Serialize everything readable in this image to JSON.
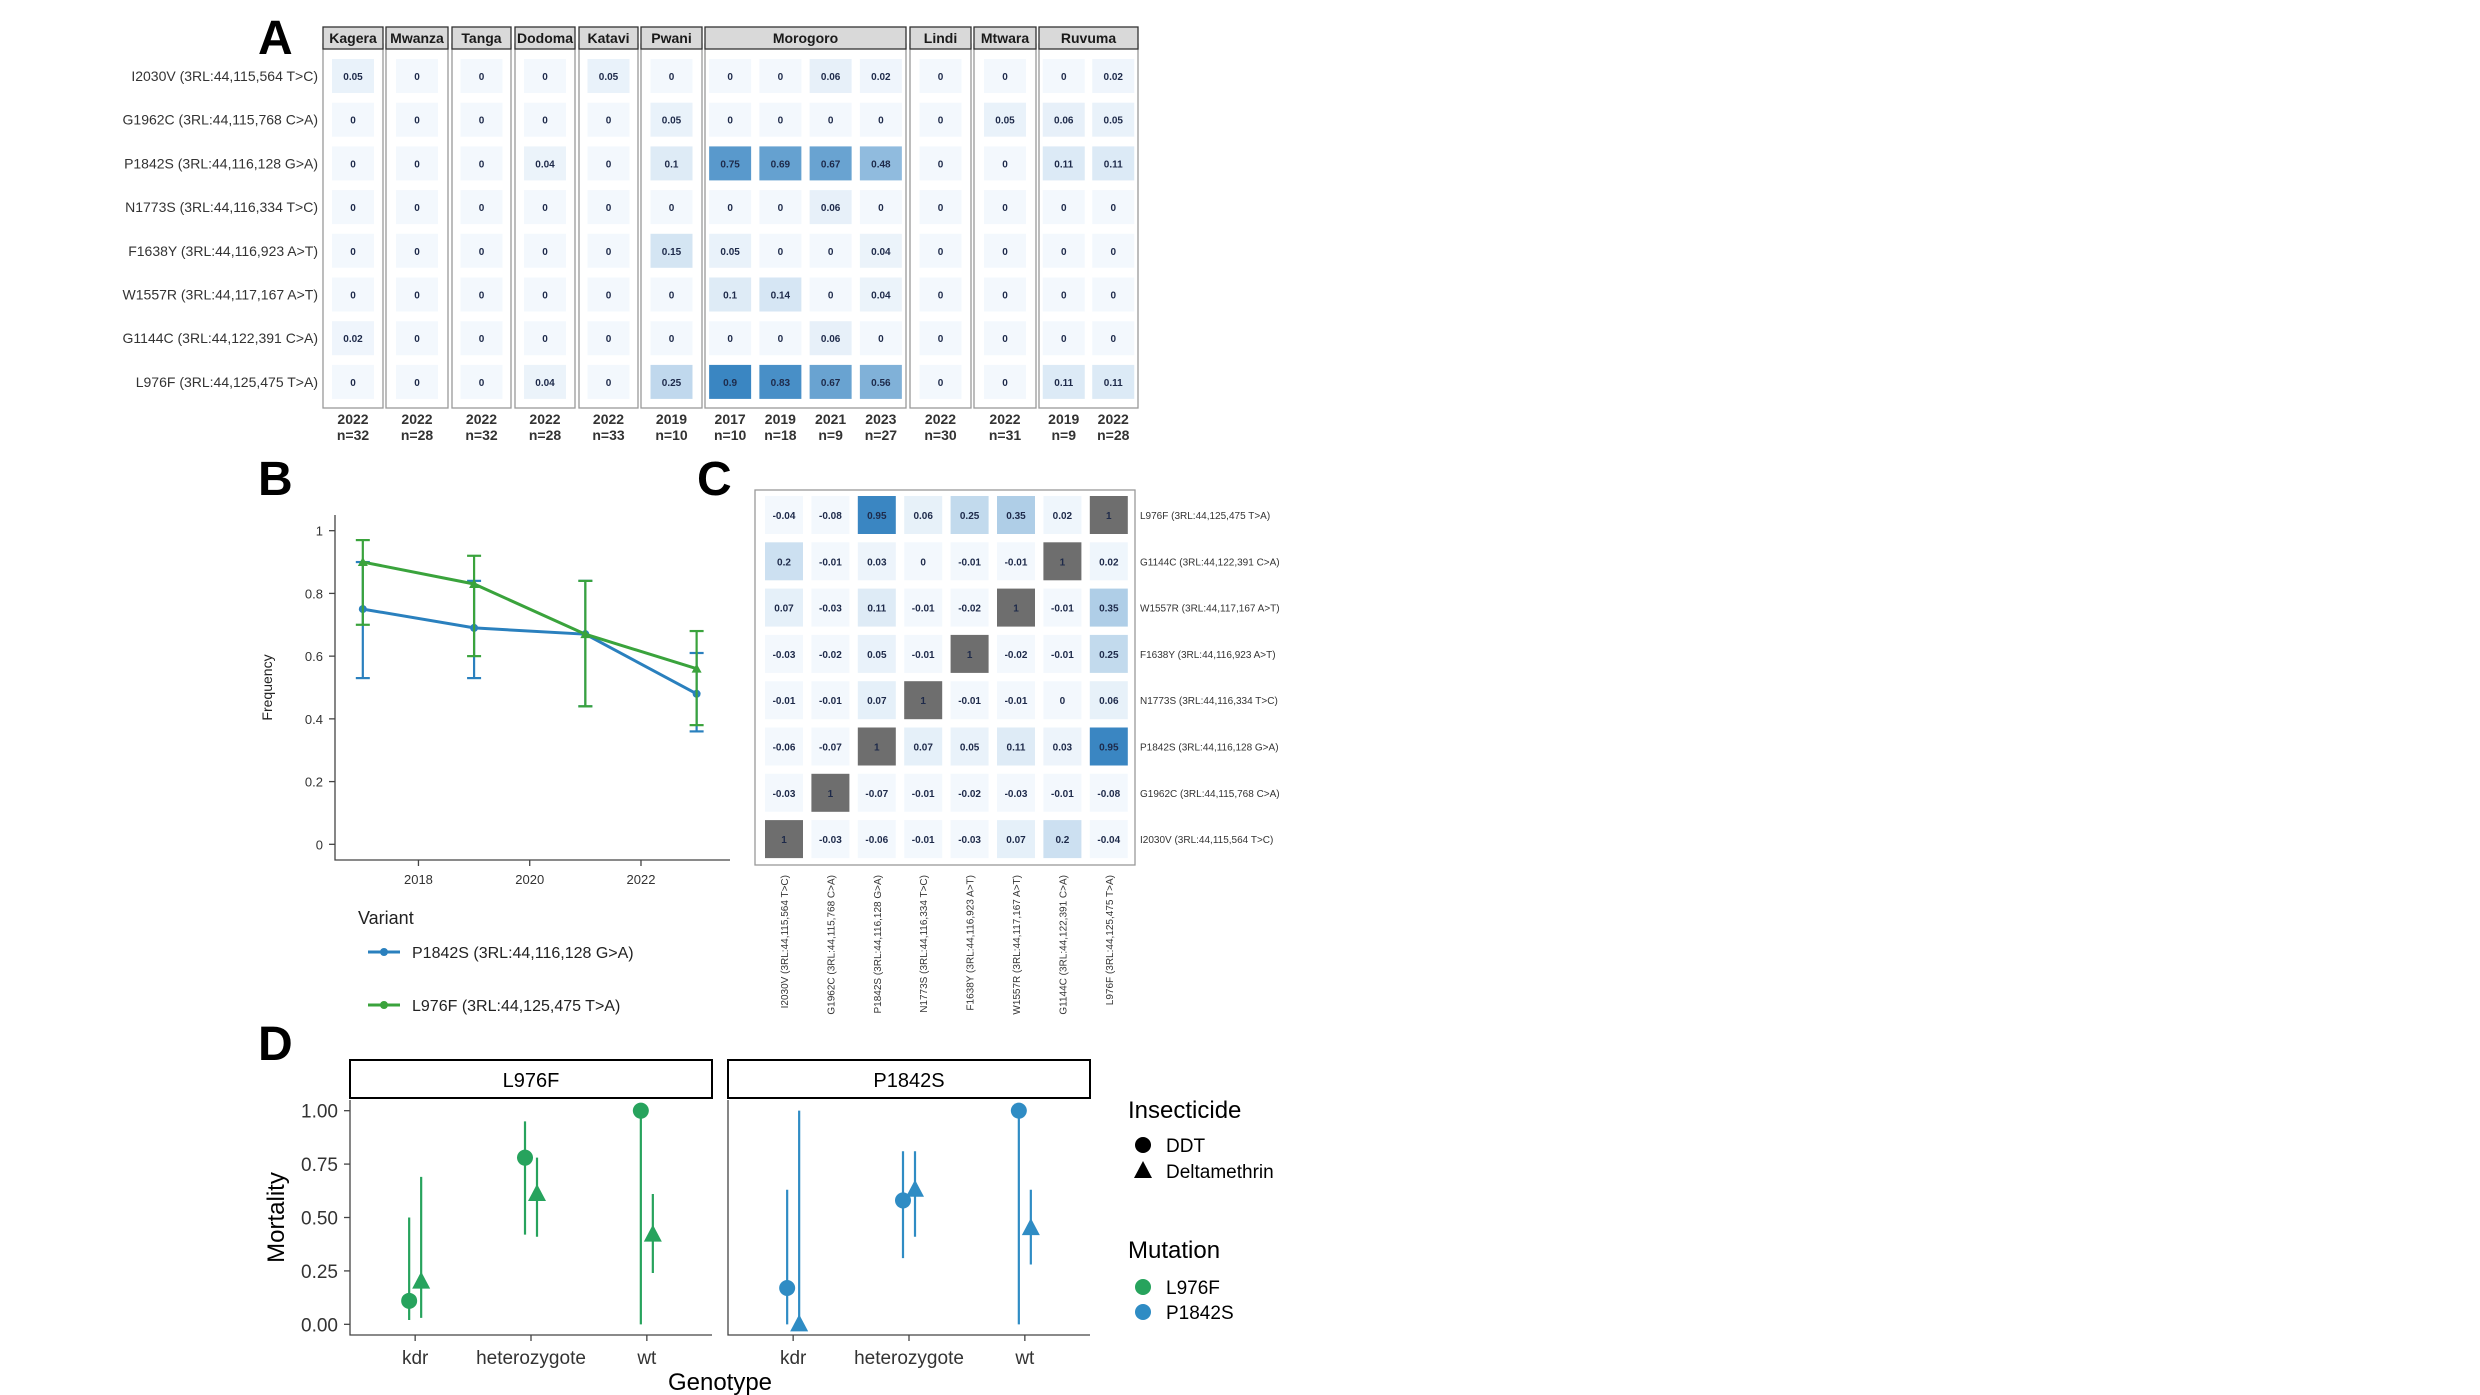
{
  "panel_letters": {
    "a": "A",
    "b": "B",
    "c": "C",
    "d": "D"
  },
  "colors": {
    "heatmap_low": "#f3f8fd",
    "heatmap_high": "#3a86c2",
    "corr_diag": "#6e6e6e",
    "series_p1842s": "#2a80be",
    "series_l976f": "#3aa33c",
    "d_l976f": "#27a35d",
    "d_p1842s": "#2f8cc4"
  },
  "chart_data": [
    {
      "panel": "A",
      "type": "heatmap",
      "regions": [
        {
          "name": "Kagera",
          "columns": [
            {
              "year": "2022",
              "n": "n=32"
            }
          ]
        },
        {
          "name": "Mwanza",
          "columns": [
            {
              "year": "2022",
              "n": "n=28"
            }
          ]
        },
        {
          "name": "Tanga",
          "columns": [
            {
              "year": "2022",
              "n": "n=32"
            }
          ]
        },
        {
          "name": "Dodoma",
          "columns": [
            {
              "year": "2022",
              "n": "n=28"
            }
          ]
        },
        {
          "name": "Katavi",
          "columns": [
            {
              "year": "2022",
              "n": "n=33"
            }
          ]
        },
        {
          "name": "Pwani",
          "columns": [
            {
              "year": "2019",
              "n": "n=10"
            }
          ]
        },
        {
          "name": "Morogoro",
          "columns": [
            {
              "year": "2017",
              "n": "n=10"
            },
            {
              "year": "2019",
              "n": "n=18"
            },
            {
              "year": "2021",
              "n": "n=9"
            },
            {
              "year": "2023",
              "n": "n=27"
            }
          ]
        },
        {
          "name": "Lindi",
          "columns": [
            {
              "year": "2022",
              "n": "n=30"
            }
          ]
        },
        {
          "name": "Mtwara",
          "columns": [
            {
              "year": "2022",
              "n": "n=31"
            }
          ]
        },
        {
          "name": "Ruvuma",
          "columns": [
            {
              "year": "2019",
              "n": "n=9"
            },
            {
              "year": "2022",
              "n": "n=28"
            }
          ]
        }
      ],
      "rows": [
        {
          "label": "I2030V (3RL:44,115,564 T>C)",
          "values": [
            0.05,
            0,
            0,
            0,
            0.05,
            0,
            0,
            0,
            0.06,
            0.02,
            0,
            0,
            0,
            0.02
          ]
        },
        {
          "label": "G1962C (3RL:44,115,768 C>A)",
          "values": [
            0,
            0,
            0,
            0,
            0,
            0.05,
            0,
            0,
            0,
            0,
            0,
            0.05,
            0.06,
            0.05
          ]
        },
        {
          "label": "P1842S (3RL:44,116,128 G>A)",
          "values": [
            0,
            0,
            0,
            0.04,
            0,
            0.1,
            0.75,
            0.69,
            0.67,
            0.48,
            0,
            0,
            0.11,
            0.11
          ]
        },
        {
          "label": "N1773S (3RL:44,116,334 T>C)",
          "values": [
            0,
            0,
            0,
            0,
            0,
            0,
            0,
            0,
            0.06,
            0,
            0,
            0,
            0,
            0
          ]
        },
        {
          "label": "F1638Y (3RL:44,116,923 A>T)",
          "values": [
            0,
            0,
            0,
            0,
            0,
            0.15,
            0.05,
            0,
            0,
            0.04,
            0,
            0,
            0,
            0
          ]
        },
        {
          "label": "W1557R (3RL:44,117,167 A>T)",
          "values": [
            0,
            0,
            0,
            0,
            0,
            0,
            0.1,
            0.14,
            0,
            0.04,
            0,
            0,
            0,
            0
          ]
        },
        {
          "label": "G1144C (3RL:44,122,391 C>A)",
          "values": [
            0.02,
            0,
            0,
            0,
            0,
            0,
            0,
            0,
            0.06,
            0,
            0,
            0,
            0,
            0
          ]
        },
        {
          "label": "L976F (3RL:44,125,475 T>A)",
          "values": [
            0,
            0,
            0,
            0.04,
            0,
            0.25,
            0.9,
            0.83,
            0.67,
            0.56,
            0,
            0,
            0.11,
            0.11
          ]
        }
      ]
    },
    {
      "panel": "B",
      "type": "line",
      "xlabel": "",
      "ylabel": "Frequency",
      "xlim": [
        2016.5,
        2023.6
      ],
      "ylim": [
        -0.05,
        1.05
      ],
      "xticks": [
        2018,
        2020,
        2022
      ],
      "yticks": [
        0,
        0.2,
        0.4,
        0.6,
        0.8,
        1
      ],
      "legend_title": "Variant",
      "series": [
        {
          "name": "P1842S (3RL:44,116,128 G>A)",
          "color": "#2a80be",
          "marker": "circle",
          "points": [
            {
              "x": 2017,
              "y": 0.75,
              "lo": 0.53,
              "hi": 0.9
            },
            {
              "x": 2019,
              "y": 0.69,
              "lo": 0.53,
              "hi": 0.84
            },
            {
              "x": 2021,
              "y": 0.67,
              "lo": 0.44,
              "hi": 0.84
            },
            {
              "x": 2023,
              "y": 0.48,
              "lo": 0.36,
              "hi": 0.61
            }
          ]
        },
        {
          "name": "L976F (3RL:44,125,475 T>A)",
          "color": "#3aa33c",
          "marker": "triangle",
          "points": [
            {
              "x": 2017,
              "y": 0.9,
              "lo": 0.7,
              "hi": 0.97
            },
            {
              "x": 2019,
              "y": 0.83,
              "lo": 0.6,
              "hi": 0.92
            },
            {
              "x": 2021,
              "y": 0.67,
              "lo": 0.44,
              "hi": 0.84
            },
            {
              "x": 2023,
              "y": 0.56,
              "lo": 0.38,
              "hi": 0.68
            }
          ]
        }
      ]
    },
    {
      "panel": "C",
      "type": "heatmap",
      "x_labels": [
        "I2030V (3RL:44,115,564 T>C)",
        "G1962C (3RL:44,115,768 C>A)",
        "P1842S (3RL:44,116,128 G>A)",
        "N1773S (3RL:44,116,334 T>C)",
        "F1638Y (3RL:44,116,923 A>T)",
        "W1557R (3RL:44,117,167 A>T)",
        "G1144C (3RL:44,122,391 C>A)",
        "L976F (3RL:44,125,475 T>A)"
      ],
      "rows": [
        {
          "label": "L976F (3RL:44,125,475 T>A)",
          "values": [
            -0.04,
            -0.08,
            0.95,
            0.06,
            0.25,
            0.35,
            0.02,
            1
          ]
        },
        {
          "label": "G1144C (3RL:44,122,391 C>A)",
          "values": [
            0.2,
            -0.01,
            0.03,
            0,
            -0.01,
            -0.01,
            1,
            0.02
          ]
        },
        {
          "label": "W1557R (3RL:44,117,167 A>T)",
          "values": [
            0.07,
            -0.03,
            0.11,
            -0.01,
            -0.02,
            1,
            -0.01,
            0.35
          ]
        },
        {
          "label": "F1638Y (3RL:44,116,923 A>T)",
          "values": [
            -0.03,
            -0.02,
            0.05,
            -0.01,
            1,
            -0.02,
            -0.01,
            0.25
          ]
        },
        {
          "label": "N1773S (3RL:44,116,334 T>C)",
          "values": [
            -0.01,
            -0.01,
            0.07,
            1,
            -0.01,
            -0.01,
            0,
            0.06
          ]
        },
        {
          "label": "P1842S (3RL:44,116,128 G>A)",
          "values": [
            -0.06,
            -0.07,
            1,
            0.07,
            0.05,
            0.11,
            0.03,
            0.95
          ]
        },
        {
          "label": "G1962C (3RL:44,115,768 C>A)",
          "values": [
            -0.03,
            1,
            -0.07,
            -0.01,
            -0.02,
            -0.03,
            -0.01,
            -0.08
          ]
        },
        {
          "label": "I2030V (3RL:44,115,564 T>C)",
          "values": [
            1,
            -0.03,
            -0.06,
            -0.01,
            -0.03,
            0.07,
            0.2,
            -0.04
          ]
        }
      ]
    },
    {
      "panel": "D",
      "type": "scatter",
      "xlabel": "Genotype",
      "ylabel": "Mortality",
      "ylim": [
        -0.05,
        1.05
      ],
      "yticks": [
        "0.00",
        "0.25",
        "0.50",
        "0.75",
        "1.00"
      ],
      "categories": [
        "kdr",
        "heterozygote",
        "wt"
      ],
      "facets": [
        {
          "name": "L976F",
          "color": "#27a35d",
          "points": [
            {
              "cat": "kdr",
              "insecticide": "DDT",
              "y": 0.11,
              "lo": 0.02,
              "hi": 0.5
            },
            {
              "cat": "kdr",
              "insecticide": "Deltamethrin",
              "y": 0.2,
              "lo": 0.03,
              "hi": 0.69
            },
            {
              "cat": "heterozygote",
              "insecticide": "DDT",
              "y": 0.78,
              "lo": 0.42,
              "hi": 0.95
            },
            {
              "cat": "heterozygote",
              "insecticide": "Deltamethrin",
              "y": 0.61,
              "lo": 0.41,
              "hi": 0.78
            },
            {
              "cat": "wt",
              "insecticide": "DDT",
              "y": 1.0,
              "lo": 0.0,
              "hi": 1.0
            },
            {
              "cat": "wt",
              "insecticide": "Deltamethrin",
              "y": 0.42,
              "lo": 0.24,
              "hi": 0.61
            }
          ]
        },
        {
          "name": "P1842S",
          "color": "#2f8cc4",
          "points": [
            {
              "cat": "kdr",
              "insecticide": "DDT",
              "y": 0.17,
              "lo": 0.0,
              "hi": 0.63
            },
            {
              "cat": "kdr",
              "insecticide": "Deltamethrin",
              "y": 0.0,
              "lo": 0.0,
              "hi": 1.0
            },
            {
              "cat": "heterozygote",
              "insecticide": "DDT",
              "y": 0.58,
              "lo": 0.31,
              "hi": 0.81
            },
            {
              "cat": "heterozygote",
              "insecticide": "Deltamethrin",
              "y": 0.63,
              "lo": 0.41,
              "hi": 0.81
            },
            {
              "cat": "wt",
              "insecticide": "DDT",
              "y": 1.0,
              "lo": 0.0,
              "hi": 1.0
            },
            {
              "cat": "wt",
              "insecticide": "Deltamethrin",
              "y": 0.45,
              "lo": 0.28,
              "hi": 0.63
            }
          ]
        }
      ],
      "legend": {
        "shape_title": "Insecticide",
        "shape_items": [
          "DDT",
          "Deltamethrin"
        ],
        "color_title": "Mutation",
        "color_items": [
          "L976F",
          "P1842S"
        ]
      }
    }
  ]
}
